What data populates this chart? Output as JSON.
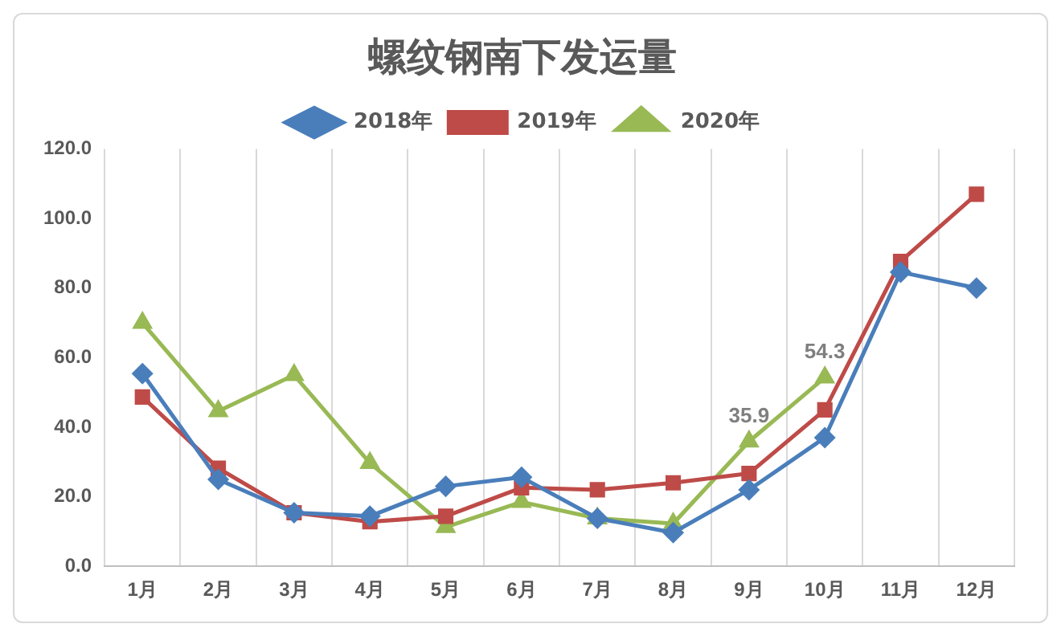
{
  "chart_data": {
    "type": "line",
    "title": "螺纹钢南下发运量",
    "categories": [
      "1月",
      "2月",
      "3月",
      "4月",
      "5月",
      "6月",
      "7月",
      "8月",
      "9月",
      "10月",
      "11月",
      "12月"
    ],
    "series": [
      {
        "name": "2018年",
        "color": "#4a7ebb",
        "marker": "diamond",
        "values": [
          55.4,
          25,
          15.4,
          14.4,
          23,
          25.6,
          13.8,
          9.7,
          22,
          37,
          84.6,
          80
        ]
      },
      {
        "name": "2019年",
        "color": "#be4b48",
        "marker": "square",
        "values": [
          48.7,
          28.2,
          15.4,
          12.8,
          14.4,
          22.6,
          22,
          24,
          26.7,
          45,
          87.7,
          107
        ]
      },
      {
        "name": "2020年",
        "color": "#98b954",
        "marker": "triangle",
        "values": [
          70,
          44.6,
          55,
          29.7,
          11.3,
          18.5,
          13.8,
          12.3,
          35.9,
          54.3,
          null,
          null
        ],
        "value_labels": [
          null,
          null,
          null,
          null,
          null,
          null,
          null,
          null,
          "35.9",
          "54.3",
          null,
          null
        ]
      }
    ],
    "ylim": [
      0,
      120
    ],
    "yticks": [
      {
        "value": 0,
        "label": "0.0"
      },
      {
        "value": 20,
        "label": "20.0"
      },
      {
        "value": 40,
        "label": "40.0"
      },
      {
        "value": 60,
        "label": "60.0"
      },
      {
        "value": 80,
        "label": "80.0"
      },
      {
        "value": 100,
        "label": "100.0"
      },
      {
        "value": 120,
        "label": "120.0"
      }
    ],
    "grid": "x",
    "legend": "top",
    "line_style": "solid"
  }
}
